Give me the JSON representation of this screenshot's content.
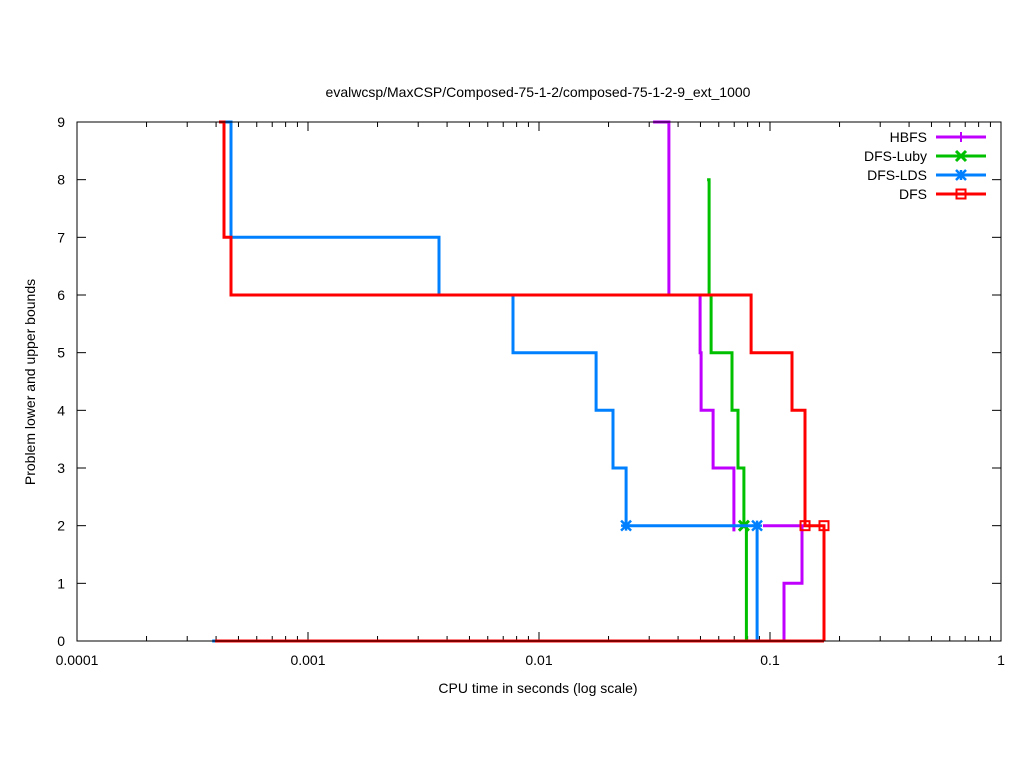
{
  "chart_data": {
    "type": "line",
    "title": "evalwcsp/MaxCSP/Composed-75-1-2/composed-75-1-2-9_ext_1000",
    "xlabel": "CPU time in seconds (log scale)",
    "ylabel": "Problem lower and upper bounds",
    "xscale": "log",
    "xlim": [
      0.0001,
      1
    ],
    "ylim": [
      0,
      9
    ],
    "xticks": [
      {
        "v": 0.0001,
        "label": "0.0001"
      },
      {
        "v": 0.001,
        "label": "0.001"
      },
      {
        "v": 0.01,
        "label": "0.01"
      },
      {
        "v": 0.1,
        "label": "0.1"
      },
      {
        "v": 1,
        "label": "1"
      }
    ],
    "yticks": [
      {
        "v": 0,
        "label": "0"
      },
      {
        "v": 1,
        "label": "1"
      },
      {
        "v": 2,
        "label": "2"
      },
      {
        "v": 3,
        "label": "3"
      },
      {
        "v": 4,
        "label": "4"
      },
      {
        "v": 5,
        "label": "5"
      },
      {
        "v": 6,
        "label": "6"
      },
      {
        "v": 7,
        "label": "7"
      },
      {
        "v": 8,
        "label": "8"
      },
      {
        "v": 9,
        "label": "9"
      }
    ],
    "legend_position": "top-right",
    "series": [
      {
        "name": "HBFS",
        "color": "#c000ff",
        "marker": "plus",
        "upper": [
          [
            0.0312,
            9
          ],
          [
            0.0365,
            9
          ],
          [
            0.0365,
            6
          ],
          [
            0.0498,
            6
          ],
          [
            0.0498,
            5
          ],
          [
            0.0503,
            5
          ],
          [
            0.0503,
            4
          ],
          [
            0.0567,
            4
          ],
          [
            0.0567,
            3
          ],
          [
            0.0698,
            3
          ],
          [
            0.0698,
            1.9
          ]
        ],
        "lower": [
          [
            0.0933,
            2
          ],
          [
            0.1376,
            2
          ],
          [
            0.1376,
            1
          ],
          [
            0.115,
            1
          ],
          [
            0.115,
            0
          ]
        ],
        "markers": []
      },
      {
        "name": "DFS-Luby",
        "color": "#00c000",
        "marker": "cross",
        "upper": [
          [
            0.0534,
            8
          ],
          [
            0.0545,
            8
          ],
          [
            0.0545,
            6
          ],
          [
            0.0556,
            6
          ],
          [
            0.0556,
            5
          ],
          [
            0.0685,
            5
          ],
          [
            0.0685,
            4
          ],
          [
            0.0727,
            4
          ],
          [
            0.0727,
            3
          ],
          [
            0.0771,
            3
          ],
          [
            0.0771,
            2
          ],
          [
            0.079,
            2
          ],
          [
            0.079,
            0
          ]
        ],
        "lower": [],
        "markers": [
          [
            0.0771,
            2
          ]
        ]
      },
      {
        "name": "DFS-LDS",
        "color": "#0080ff",
        "marker": "star",
        "upper": [
          [
            0.00042,
            9
          ],
          [
            0.000464,
            9
          ],
          [
            0.000464,
            7
          ],
          [
            0.00369,
            7
          ],
          [
            0.00369,
            6
          ],
          [
            0.00772,
            6
          ],
          [
            0.00772,
            5
          ],
          [
            0.01766,
            5
          ],
          [
            0.01766,
            4
          ],
          [
            0.0209,
            4
          ],
          [
            0.0209,
            3
          ],
          [
            0.02382,
            3
          ],
          [
            0.02382,
            2
          ],
          [
            0.0879,
            2
          ],
          [
            0.0879,
            0
          ]
        ],
        "lower": [
          [
            0.000385,
            0
          ],
          [
            0.0879,
            0
          ]
        ],
        "markers": [
          [
            0.02382,
            2
          ],
          [
            0.0879,
            2
          ]
        ]
      },
      {
        "name": "DFS",
        "color": "#ff0000",
        "marker": "square",
        "upper": [
          [
            0.000412,
            9
          ],
          [
            0.000433,
            9
          ],
          [
            0.000433,
            7
          ],
          [
            0.000464,
            7
          ],
          [
            0.000464,
            6
          ],
          [
            0.0828,
            6
          ],
          [
            0.0828,
            5
          ],
          [
            0.1245,
            5
          ],
          [
            0.1245,
            4
          ],
          [
            0.1418,
            4
          ],
          [
            0.1418,
            2
          ],
          [
            0.1713,
            2
          ],
          [
            0.1713,
            0
          ]
        ],
        "lower": [
          [
            0.000396,
            0
          ],
          [
            0.1713,
            0
          ]
        ],
        "markers": [
          [
            0.1418,
            2
          ],
          [
            0.1713,
            2
          ]
        ]
      }
    ]
  }
}
